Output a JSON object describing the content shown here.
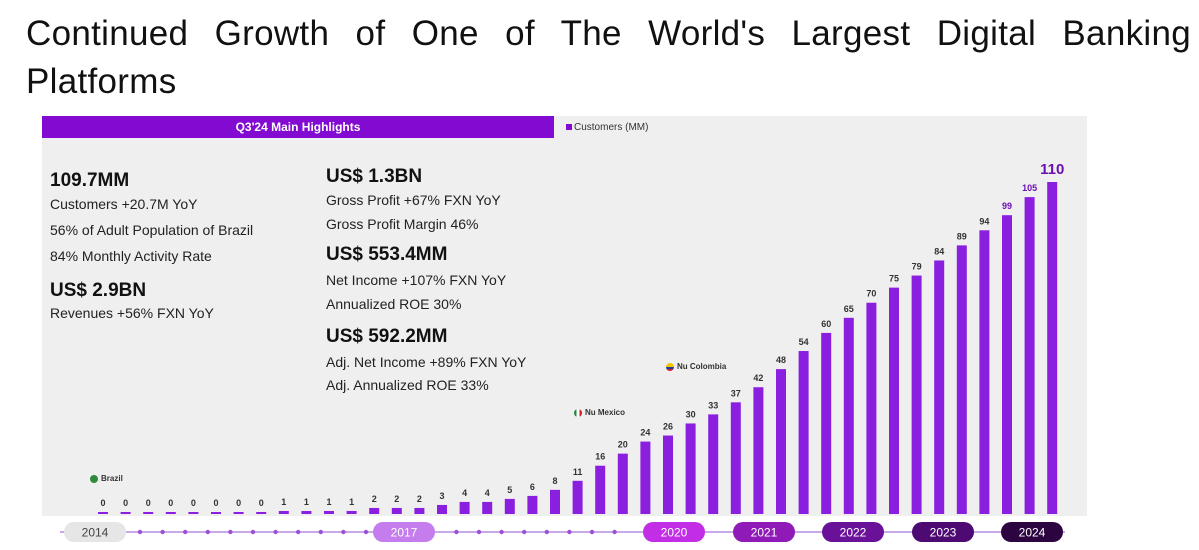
{
  "page": {
    "title": "Continued Growth of One of The World's Largest Digital Banking Platforms"
  },
  "highlights": {
    "header": "Q3'24 Main Highlights",
    "left": {
      "customers_big": "109.7MM",
      "customers_l1": "Customers +20.7M YoY",
      "customers_l2": "56% of Adult Population of Brazil",
      "customers_l3": "84% Monthly Activity Rate",
      "revenue_big": "US$ 2.9BN",
      "revenue_l1": "Revenues +56%  FXN YoY"
    },
    "right": {
      "gp_big": "US$ 1.3BN",
      "gp_l1": "Gross Profit +67%  FXN YoY",
      "gp_l2": "Gross Profit Margin 46%",
      "ni_big": "US$ 553.4MM",
      "ni_l1": "Net Income +107% FXN YoY",
      "ni_l2": "Annualized ROE 30%",
      "adj_big": "US$ 592.2MM",
      "adj_l1": "Adj. Net Income +89% FXN YoY",
      "adj_l2": "Adj. Annualized ROE 33%"
    }
  },
  "markers": {
    "brazil": "Brazil",
    "mexico": "Nu Mexico",
    "colombia": "Nu Colombia"
  },
  "colors": {
    "accent": "#820ad1",
    "bar": "#8a1fe0"
  },
  "chart_data": {
    "type": "bar",
    "legend": "Customers (MM)",
    "values": [
      0,
      0,
      0,
      0,
      0,
      0,
      0,
      0,
      1,
      1,
      1,
      1,
      2,
      2,
      2,
      3,
      4,
      4,
      5,
      6,
      8,
      11,
      16,
      20,
      24,
      26,
      30,
      33,
      37,
      42,
      48,
      54,
      60,
      65,
      70,
      75,
      79,
      84,
      89,
      94,
      99,
      105,
      110
    ],
    "year_labels": [
      "2014",
      "2017",
      "2020",
      "2021",
      "2022",
      "2023",
      "2024"
    ],
    "ylim": [
      0,
      110
    ]
  }
}
